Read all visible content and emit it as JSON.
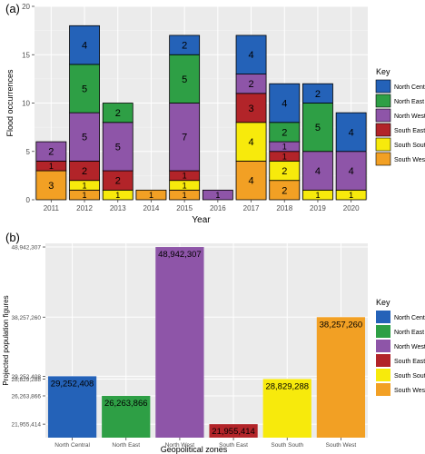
{
  "palette": {
    "North Central": "#2462b8",
    "North East": "#2e9f45",
    "North West": "#8e55a8",
    "South East": "#b22429",
    "South South": "#f7ea0c",
    "South West": "#f2a024"
  },
  "chart_data": [
    {
      "panel_label": "(a)",
      "type": "bar",
      "stacked": true,
      "xlabel": "Year",
      "ylabel": "Flood occurrences",
      "ylim": [
        0,
        20
      ],
      "yticks": [
        0,
        5,
        10,
        15,
        20
      ],
      "grid": true,
      "legend_title": "Key",
      "legend_position": "right",
      "categories": [
        "2011",
        "2012",
        "2013",
        "2014",
        "2015",
        "2016",
        "2017",
        "2018",
        "2019",
        "2020"
      ],
      "series": [
        {
          "name": "South West",
          "values": [
            3,
            1,
            0,
            1,
            1,
            0,
            4,
            2,
            0,
            0
          ]
        },
        {
          "name": "South South",
          "values": [
            0,
            1,
            1,
            0,
            1,
            0,
            4,
            2,
            1,
            1
          ]
        },
        {
          "name": "South East",
          "values": [
            1,
            2,
            2,
            0,
            1,
            0,
            3,
            1,
            0,
            0
          ]
        },
        {
          "name": "North West",
          "values": [
            2,
            5,
            5,
            0,
            7,
            1,
            2,
            1,
            4,
            4
          ]
        },
        {
          "name": "North East",
          "values": [
            0,
            5,
            2,
            0,
            5,
            0,
            0,
            2,
            5,
            0
          ]
        },
        {
          "name": "North Central",
          "values": [
            0,
            4,
            0,
            0,
            2,
            0,
            4,
            4,
            2,
            4
          ]
        }
      ]
    },
    {
      "panel_label": "(b)",
      "type": "bar",
      "xlabel": "Geopolitical zones",
      "ylabel": "Projected population figures",
      "ylim": [
        19900000,
        49500000
      ],
      "yticks": [
        {
          "value": 21955414,
          "label": "21,955,414"
        },
        {
          "value": 26263866,
          "label": "26,263,866"
        },
        {
          "value": 28829288,
          "label": "28,829,288"
        },
        {
          "value": 29252408,
          "label": "29,252,408"
        },
        {
          "value": 38257260,
          "label": "38,257,260"
        },
        {
          "value": 48942307,
          "label": "48,942,307"
        }
      ],
      "grid": true,
      "legend_title": "Key",
      "legend_position": "right",
      "categories": [
        "North Central",
        "North East",
        "North West",
        "South East",
        "South South",
        "South West"
      ],
      "values": [
        29252408,
        26263866,
        48942307,
        21955414,
        28829288,
        38257260
      ],
      "value_labels": [
        "29,252,408",
        "26,263,866",
        "48,942,307",
        "21,955,414",
        "28,829,288",
        "38,257,260"
      ]
    }
  ],
  "legend_items": [
    "North Central",
    "North East",
    "North West",
    "South East",
    "South South",
    "South West"
  ]
}
